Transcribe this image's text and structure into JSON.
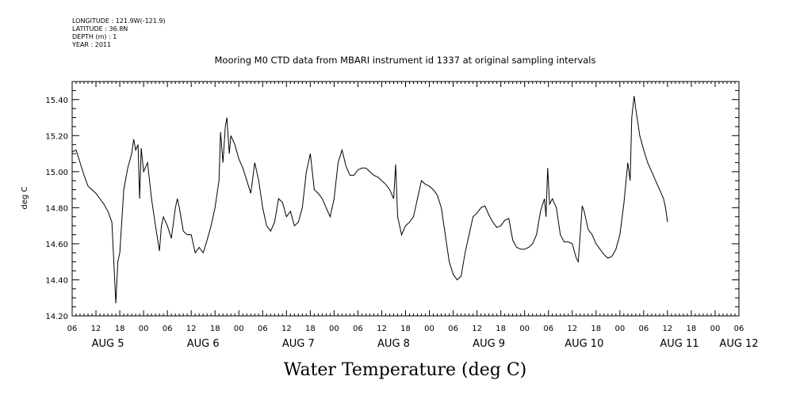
{
  "header": {
    "longitude": "LONGITUDE : 121.9W(-121.9)",
    "latitude": "LATITUDE : 36.8N",
    "depth": "DEPTH (m) : 1",
    "year": "YEAR : 2011"
  },
  "chart_data": {
    "type": "line",
    "title": "Mooring M0 CTD data from MBARI instrument id 1337 at original sampling intervals",
    "xlabel": "Water Temperature (deg C)",
    "ylabel": "deg C",
    "x_unit": "hours from AUG 5 06:00",
    "xlim": [
      0,
      168
    ],
    "ylim": [
      14.2,
      15.5
    ],
    "y_ticks": [
      "14.20",
      "14.40",
      "14.60",
      "14.80",
      "15.00",
      "15.20",
      "15.40"
    ],
    "hour_ticks": [
      "06",
      "12",
      "18",
      "00",
      "06",
      "12",
      "18",
      "00",
      "06",
      "12",
      "18",
      "00",
      "06",
      "12",
      "18",
      "00",
      "06",
      "12",
      "18",
      "00",
      "06",
      "12",
      "18",
      "00",
      "06",
      "12",
      "18",
      "00",
      "06"
    ],
    "day_labels": [
      {
        "label": "AUG  5",
        "x": 9
      },
      {
        "label": "AUG  6",
        "x": 33
      },
      {
        "label": "AUG  7",
        "x": 57
      },
      {
        "label": "AUG  8",
        "x": 81
      },
      {
        "label": "AUG  9",
        "x": 105
      },
      {
        "label": "AUG 10",
        "x": 129
      },
      {
        "label": "AUG 11",
        "x": 153
      },
      {
        "label": "AUG 12",
        "x": 168
      }
    ],
    "series": [
      {
        "values": [
          [
            0,
            15.11
          ],
          [
            1,
            15.12
          ],
          [
            2,
            15.05
          ],
          [
            3,
            14.98
          ],
          [
            4,
            14.92
          ],
          [
            5,
            14.9
          ],
          [
            6,
            14.88
          ],
          [
            7,
            14.85
          ],
          [
            8,
            14.82
          ],
          [
            9,
            14.78
          ],
          [
            10,
            14.72
          ],
          [
            11,
            14.27
          ],
          [
            11.5,
            14.5
          ],
          [
            12,
            14.55
          ],
          [
            13,
            14.9
          ],
          [
            14,
            15.02
          ],
          [
            15,
            15.1
          ],
          [
            15.5,
            15.18
          ],
          [
            16,
            15.12
          ],
          [
            16.6,
            15.15
          ],
          [
            17,
            14.85
          ],
          [
            17.4,
            15.13
          ],
          [
            18,
            15.0
          ],
          [
            19,
            15.05
          ],
          [
            20,
            14.85
          ],
          [
            21,
            14.7
          ],
          [
            22,
            14.56
          ],
          [
            22.5,
            14.7
          ],
          [
            23,
            14.75
          ],
          [
            24,
            14.7
          ],
          [
            25,
            14.63
          ],
          [
            26,
            14.8
          ],
          [
            26.5,
            14.85
          ],
          [
            27,
            14.8
          ],
          [
            28,
            14.67
          ],
          [
            29,
            14.65
          ],
          [
            30,
            14.65
          ],
          [
            31,
            14.55
          ],
          [
            32,
            14.58
          ],
          [
            33,
            14.55
          ],
          [
            34,
            14.62
          ],
          [
            35,
            14.7
          ],
          [
            36,
            14.8
          ],
          [
            37,
            14.95
          ],
          [
            37.4,
            15.22
          ],
          [
            38,
            15.05
          ],
          [
            38.6,
            15.25
          ],
          [
            39,
            15.3
          ],
          [
            39.6,
            15.1
          ],
          [
            40,
            15.2
          ],
          [
            41,
            15.15
          ],
          [
            42,
            15.07
          ],
          [
            43,
            15.02
          ],
          [
            44,
            14.95
          ],
          [
            45,
            14.88
          ],
          [
            46,
            15.05
          ],
          [
            47,
            14.95
          ],
          [
            48,
            14.8
          ],
          [
            49,
            14.7
          ],
          [
            50,
            14.67
          ],
          [
            51,
            14.72
          ],
          [
            52,
            14.85
          ],
          [
            53,
            14.83
          ],
          [
            54,
            14.75
          ],
          [
            55,
            14.78
          ],
          [
            56,
            14.7
          ],
          [
            57,
            14.72
          ],
          [
            58,
            14.8
          ],
          [
            59,
            15.0
          ],
          [
            60,
            15.1
          ],
          [
            61,
            14.9
          ],
          [
            62,
            14.88
          ],
          [
            63,
            14.85
          ],
          [
            64,
            14.8
          ],
          [
            65,
            14.75
          ],
          [
            66,
            14.85
          ],
          [
            67,
            15.05
          ],
          [
            68,
            15.12
          ],
          [
            69,
            15.03
          ],
          [
            70,
            14.98
          ],
          [
            71,
            14.98
          ],
          [
            72,
            15.01
          ],
          [
            73,
            15.02
          ],
          [
            74,
            15.02
          ],
          [
            75,
            15.0
          ],
          [
            76,
            14.98
          ],
          [
            77,
            14.97
          ],
          [
            78,
            14.95
          ],
          [
            79,
            14.93
          ],
          [
            80,
            14.9
          ],
          [
            81,
            14.85
          ],
          [
            81.5,
            15.04
          ],
          [
            82,
            14.75
          ],
          [
            83,
            14.65
          ],
          [
            84,
            14.7
          ],
          [
            85,
            14.72
          ],
          [
            86,
            14.75
          ],
          [
            87,
            14.85
          ],
          [
            88,
            14.95
          ],
          [
            89,
            14.93
          ],
          [
            90,
            14.92
          ],
          [
            91,
            14.9
          ],
          [
            92,
            14.87
          ],
          [
            93,
            14.8
          ],
          [
            94,
            14.65
          ],
          [
            95,
            14.5
          ],
          [
            96,
            14.43
          ],
          [
            97,
            14.4
          ],
          [
            98,
            14.42
          ],
          [
            99,
            14.55
          ],
          [
            100,
            14.65
          ],
          [
            101,
            14.75
          ],
          [
            102,
            14.77
          ],
          [
            103,
            14.8
          ],
          [
            104,
            14.81
          ],
          [
            105,
            14.76
          ],
          [
            106,
            14.72
          ],
          [
            107,
            14.69
          ],
          [
            108,
            14.7
          ],
          [
            109,
            14.73
          ],
          [
            110,
            14.74
          ],
          [
            111,
            14.62
          ],
          [
            112,
            14.58
          ],
          [
            113,
            14.57
          ],
          [
            114,
            14.57
          ],
          [
            115,
            14.58
          ],
          [
            116,
            14.6
          ],
          [
            117,
            14.65
          ],
          [
            118,
            14.78
          ],
          [
            119,
            14.85
          ],
          [
            119.4,
            14.75
          ],
          [
            119.8,
            15.02
          ],
          [
            120.3,
            14.82
          ],
          [
            121,
            14.85
          ],
          [
            122,
            14.8
          ],
          [
            123,
            14.65
          ],
          [
            124,
            14.61
          ],
          [
            125,
            14.61
          ],
          [
            126,
            14.6
          ],
          [
            127,
            14.52
          ],
          [
            127.5,
            14.5
          ],
          [
            128,
            14.65
          ],
          [
            128.5,
            14.81
          ],
          [
            129,
            14.78
          ],
          [
            130,
            14.68
          ],
          [
            131,
            14.65
          ],
          [
            132,
            14.6
          ],
          [
            133,
            14.57
          ],
          [
            134,
            14.54
          ],
          [
            135,
            14.52
          ],
          [
            136,
            14.53
          ],
          [
            137,
            14.57
          ],
          [
            138,
            14.65
          ],
          [
            139,
            14.82
          ],
          [
            140,
            15.05
          ],
          [
            140.6,
            14.95
          ],
          [
            141,
            15.3
          ],
          [
            141.6,
            15.42
          ],
          [
            142,
            15.35
          ],
          [
            143,
            15.2
          ],
          [
            144,
            15.12
          ],
          [
            145,
            15.05
          ],
          [
            146,
            15.0
          ],
          [
            147,
            14.95
          ],
          [
            148,
            14.9
          ],
          [
            149,
            14.85
          ],
          [
            149.5,
            14.8
          ],
          [
            150,
            14.72
          ]
        ]
      }
    ]
  }
}
